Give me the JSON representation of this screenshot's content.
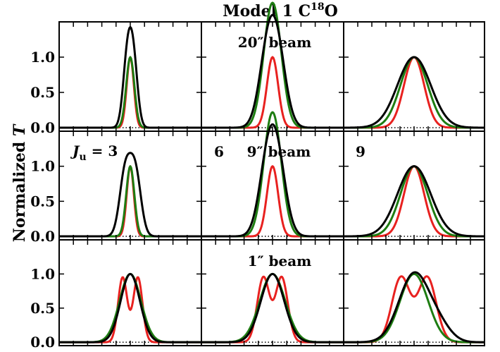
{
  "figure": {
    "title_main": "Model 1 C",
    "title_sup": "18",
    "title_end": "O",
    "ylabel_main": "Normalized ",
    "ylabel_italic": "T"
  },
  "yticks": [
    "0.0",
    "0.5",
    "1.0"
  ],
  "colors": {
    "line_1": "#e8211f",
    "line_2": "#1e7d12",
    "line_3": "#000000"
  },
  "chart_data": {
    "type": "line",
    "grid_rows": 3,
    "grid_cols": 3,
    "ylim": [
      -0.05,
      1.5
    ],
    "xlim": [
      -7,
      7
    ],
    "y_ticks": [
      0.0,
      0.5,
      1.0
    ],
    "annotations": [
      {
        "row": 0,
        "col": 1,
        "text": "20″ beam"
      },
      {
        "row": 1,
        "col": 0,
        "text": "J",
        "sub": "u",
        "suffix": " = 3"
      },
      {
        "row": 1,
        "col": 1,
        "text": "6"
      },
      {
        "row": 1,
        "col": 1,
        "text": "9″ beam"
      },
      {
        "row": 1,
        "col": 2,
        "text": "9"
      },
      {
        "row": 2,
        "col": 1,
        "text": "1″ beam"
      }
    ],
    "panels": [
      {
        "row": 0,
        "col": 0,
        "series": [
          {
            "color": "#e8211f",
            "components": [
              {
                "amp": 1.0,
                "center": 0.0,
                "width": 0.35
              }
            ]
          },
          {
            "color": "#1e7d12",
            "components": [
              {
                "amp": 1.0,
                "center": 0.0,
                "width": 0.4
              }
            ]
          },
          {
            "color": "#000000",
            "components": [
              {
                "amp": 0.92,
                "center": -0.3,
                "width": 0.42
              },
              {
                "amp": 0.92,
                "center": 0.3,
                "width": 0.42
              }
            ]
          }
        ]
      },
      {
        "row": 0,
        "col": 1,
        "series": [
          {
            "color": "#e8211f",
            "components": [
              {
                "amp": 1.0,
                "center": 0.0,
                "width": 0.55
              }
            ]
          },
          {
            "color": "#1e7d12",
            "components": [
              {
                "amp": 0.95,
                "center": -0.3,
                "width": 0.8
              },
              {
                "amp": 0.95,
                "center": 0.3,
                "width": 0.8
              }
            ]
          },
          {
            "color": "#000000",
            "components": [
              {
                "amp": 0.95,
                "center": -0.5,
                "width": 0.85
              },
              {
                "amp": 0.95,
                "center": 0.5,
                "width": 0.85
              }
            ]
          }
        ]
      },
      {
        "row": 0,
        "col": 2,
        "series": [
          {
            "color": "#e8211f",
            "components": [
              {
                "amp": 1.0,
                "center": 0.0,
                "width": 1.0
              }
            ]
          },
          {
            "color": "#1e7d12",
            "components": [
              {
                "amp": 1.0,
                "center": 0.0,
                "width": 1.35
              }
            ]
          },
          {
            "color": "#000000",
            "components": [
              {
                "amp": 1.0,
                "center": 0.0,
                "width": 1.65
              }
            ]
          }
        ]
      },
      {
        "row": 1,
        "col": 0,
        "series": [
          {
            "color": "#e8211f",
            "components": [
              {
                "amp": 1.0,
                "center": 0.0,
                "width": 0.35
              }
            ]
          },
          {
            "color": "#1e7d12",
            "components": [
              {
                "amp": 1.0,
                "center": 0.0,
                "width": 0.4
              }
            ]
          },
          {
            "color": "#000000",
            "components": [
              {
                "amp": 0.9,
                "center": -0.5,
                "width": 0.55
              },
              {
                "amp": 0.9,
                "center": 0.5,
                "width": 0.55
              }
            ]
          }
        ]
      },
      {
        "row": 1,
        "col": 1,
        "series": [
          {
            "color": "#e8211f",
            "components": [
              {
                "amp": 1.0,
                "center": 0.0,
                "width": 0.55
              }
            ]
          },
          {
            "color": "#1e7d12",
            "components": [
              {
                "amp": 0.95,
                "center": -0.3,
                "width": 0.8
              },
              {
                "amp": 0.95,
                "center": 0.3,
                "width": 0.8
              }
            ]
          },
          {
            "color": "#000000",
            "components": [
              {
                "amp": 0.95,
                "center": -0.5,
                "width": 0.85
              },
              {
                "amp": 0.95,
                "center": 0.5,
                "width": 0.85
              }
            ]
          }
        ]
      },
      {
        "row": 1,
        "col": 2,
        "series": [
          {
            "color": "#e8211f",
            "components": [
              {
                "amp": 1.0,
                "center": 0.0,
                "width": 1.0
              }
            ]
          },
          {
            "color": "#1e7d12",
            "components": [
              {
                "amp": 1.0,
                "center": 0.0,
                "width": 1.35
              }
            ]
          },
          {
            "color": "#000000",
            "components": [
              {
                "amp": 1.0,
                "center": 0.0,
                "width": 1.65
              }
            ]
          }
        ]
      },
      {
        "row": 2,
        "col": 0,
        "series": [
          {
            "color": "#e8211f",
            "components": [
              {
                "amp": 0.95,
                "center": -0.75,
                "width": 0.45
              },
              {
                "amp": 0.95,
                "center": 0.75,
                "width": 0.45
              }
            ]
          },
          {
            "color": "#1e7d12",
            "components": [
              {
                "amp": 1.0,
                "center": 0.0,
                "width": 1.05
              }
            ]
          },
          {
            "color": "#000000",
            "components": [
              {
                "amp": 1.0,
                "center": 0.0,
                "width": 0.95
              }
            ]
          }
        ]
      },
      {
        "row": 2,
        "col": 1,
        "series": [
          {
            "color": "#e8211f",
            "components": [
              {
                "amp": 0.95,
                "center": -0.9,
                "width": 0.6
              },
              {
                "amp": 0.95,
                "center": 0.9,
                "width": 0.6
              }
            ]
          },
          {
            "color": "#1e7d12",
            "components": [
              {
                "amp": 1.0,
                "center": 0.0,
                "width": 1.25
              }
            ]
          },
          {
            "color": "#000000",
            "components": [
              {
                "amp": 1.0,
                "center": 0.0,
                "width": 1.15
              }
            ]
          }
        ]
      },
      {
        "row": 2,
        "col": 2,
        "series": [
          {
            "color": "#e8211f",
            "components": [
              {
                "amp": 0.95,
                "center": -1.3,
                "width": 0.9
              },
              {
                "amp": 0.95,
                "center": 1.3,
                "width": 0.9
              }
            ]
          },
          {
            "color": "#1e7d12",
            "components": [
              {
                "amp": 1.0,
                "center": 0.0,
                "width": 1.4
              }
            ]
          },
          {
            "color": "#000000",
            "components": [
              {
                "amp": 1.0,
                "center": 0.0,
                "width": 1.5
              },
              {
                "amp": 0.2,
                "center": 2.5,
                "width": 1.2
              }
            ]
          }
        ]
      }
    ]
  }
}
